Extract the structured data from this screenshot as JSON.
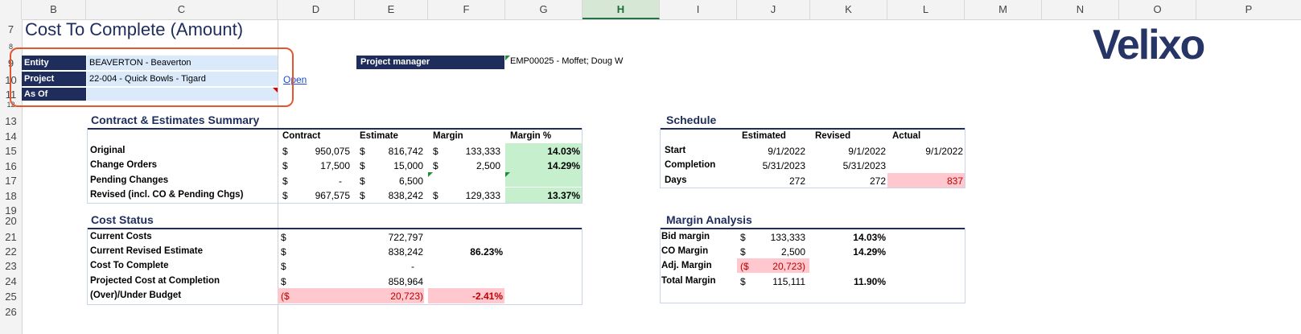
{
  "columns": [
    "B",
    "C",
    "D",
    "E",
    "F",
    "G",
    "H",
    "I",
    "J",
    "K",
    "L",
    "M",
    "N",
    "O",
    "P"
  ],
  "rows": [
    "7",
    "8",
    "9",
    "10",
    "11",
    "12",
    "13",
    "14",
    "15",
    "16",
    "17",
    "18",
    "19",
    "20",
    "21",
    "22",
    "23",
    "24",
    "25",
    "26"
  ],
  "title": "Cost To Complete (Amount)",
  "brand": "Velixo",
  "header": {
    "entity_label": "Entity",
    "entity_value": "BEAVERTON - Beaverton",
    "project_label": "Project",
    "project_value": "22-004 - Quick Bowls - Tigard",
    "asof_label": "As Of",
    "asof_value": "",
    "open_link": "Open",
    "pm_label": "Project manager",
    "pm_value": "EMP00025 - Moffet; Doug W"
  },
  "contract": {
    "title": "Contract & Estimates Summary",
    "headers": [
      "Contract",
      "Estimate",
      "Margin",
      "Margin %"
    ],
    "rows": [
      {
        "label": "Original",
        "c_cur": "$",
        "contract": "950,075",
        "e_cur": "$",
        "estimate": "816,742",
        "m_cur": "$",
        "margin": "133,333",
        "pct": "14.03%"
      },
      {
        "label": "Change Orders",
        "c_cur": "$",
        "contract": "17,500",
        "e_cur": "$",
        "estimate": "15,000",
        "m_cur": "$",
        "margin": "2,500",
        "pct": "14.29%"
      },
      {
        "label": "Pending Changes",
        "c_cur": "$",
        "contract": "-",
        "e_cur": "$",
        "estimate": "6,500",
        "m_cur": "",
        "margin": "",
        "pct": ""
      },
      {
        "label": "Revised (incl. CO & Pending Chgs)",
        "c_cur": "$",
        "contract": "967,575",
        "e_cur": "$",
        "estimate": "838,242",
        "m_cur": "$",
        "margin": "129,333",
        "pct": "13.37%"
      }
    ]
  },
  "cost": {
    "title": "Cost Status",
    "rows": [
      {
        "label": "Current Costs",
        "cur": "$",
        "value": "722,797",
        "pct": ""
      },
      {
        "label": "Current Revised Estimate",
        "cur": "$",
        "value": "838,242",
        "pct": "86.23%"
      },
      {
        "label": "Cost To Complete",
        "cur": "$",
        "value": "-",
        "pct": ""
      },
      {
        "label": "Projected Cost at Completion",
        "cur": "$",
        "value": "858,964",
        "pct": ""
      },
      {
        "label": "(Over)/Under Budget",
        "cur": "($",
        "value": "20,723)",
        "pct": "-2.41%"
      }
    ]
  },
  "schedule": {
    "title": "Schedule",
    "headers": [
      "Estimated",
      "Revised",
      "Actual"
    ],
    "rows": [
      {
        "label": "Start",
        "est": "9/1/2022",
        "rev": "9/1/2022",
        "act": "9/1/2022"
      },
      {
        "label": "Completion",
        "est": "5/31/2023",
        "rev": "5/31/2023",
        "act": ""
      },
      {
        "label": "Days",
        "est": "272",
        "rev": "272",
        "act": "837"
      }
    ]
  },
  "margin": {
    "title": "Margin Analysis",
    "rows": [
      {
        "label": "Bid margin",
        "cur": "$",
        "value": "133,333",
        "pct": "14.03%"
      },
      {
        "label": "CO Margin",
        "cur": "$",
        "value": "2,500",
        "pct": "14.29%"
      },
      {
        "label": "Adj. Margin",
        "cur": "($",
        "value": "20,723)",
        "pct": ""
      },
      {
        "label": "Total Margin",
        "cur": "$",
        "value": "115,111",
        "pct": "11.90%"
      }
    ]
  },
  "colors": {
    "navy": "#1f2d5c",
    "light_blue": "#dbeafb",
    "green": "#c6efce",
    "pink": "#ffc7ce",
    "highlight": "#e4572e"
  }
}
